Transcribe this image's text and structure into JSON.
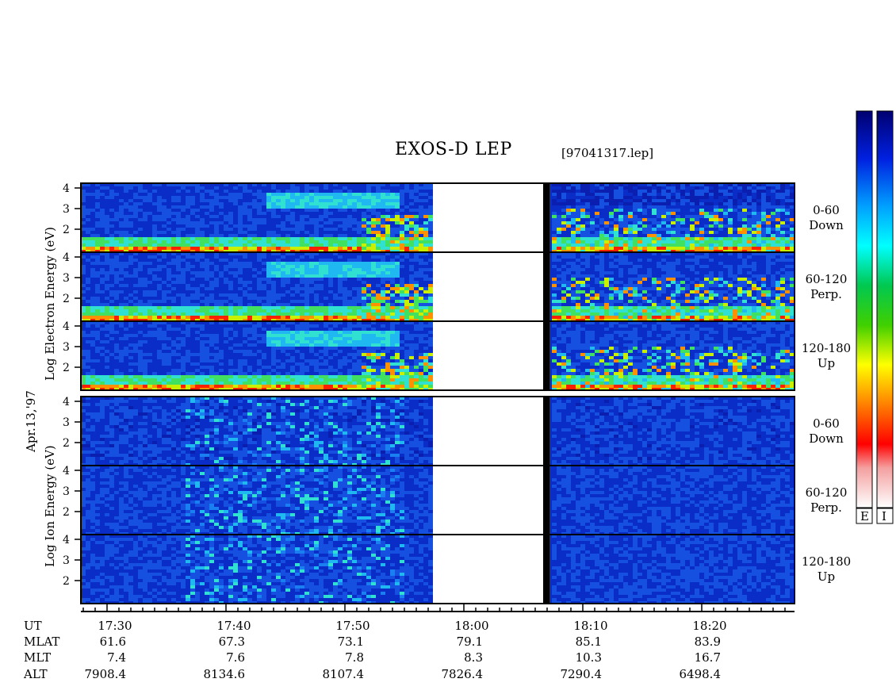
{
  "title": "EXOS-D LEP",
  "file_name": "[97041317.lep]",
  "date_label": "Apr.13,'97",
  "electron_axis_label": "Log Electron Energy (eV)",
  "ion_axis_label": "Log Ion Energy (eV)",
  "colorbar_labels": [
    "E",
    "I"
  ],
  "colors": {
    "spectrogram_background": "#0a2dc8",
    "gap_fill": "#ffffff",
    "frame": "#000000"
  },
  "chart_data": {
    "type": "heatmap",
    "description_units": "time UT vs log10 energy (eV), pitch-angle sectors",
    "time_ticks": [
      "17:30",
      "17:40",
      "17:50",
      "18:00",
      "18:10",
      "18:20"
    ],
    "energy_ticks": [
      "4",
      "3",
      "2"
    ],
    "energy_ticks_bottom_panel": [
      "4",
      "3",
      "2"
    ],
    "ylim_log_ev": [
      0.8,
      4.1
    ],
    "data_gap_ut": [
      "17:57",
      "18:07"
    ],
    "panels": [
      {
        "species": "electron",
        "label1": "0-60",
        "label2": "Down"
      },
      {
        "species": "electron",
        "label1": "60-120",
        "label2": "Perp."
      },
      {
        "species": "electron",
        "label1": "120-180",
        "label2": "Up"
      },
      {
        "species": "ion",
        "label1": "0-60",
        "label2": "Down"
      },
      {
        "species": "ion",
        "label1": "60-120",
        "label2": "Perp."
      },
      {
        "species": "ion",
        "label1": "120-180",
        "label2": "Up"
      }
    ],
    "ephemeris": {
      "row_labels": [
        "UT",
        "MLAT",
        "MLT",
        "ALT"
      ],
      "UT": [
        "17:30",
        "17:40",
        "17:50",
        "18:00",
        "18:10",
        "18:20"
      ],
      "MLAT": [
        "61.6",
        "67.3",
        "73.1",
        "79.1",
        "85.1",
        "83.9"
      ],
      "MLT": [
        "7.4",
        "7.6",
        "7.8",
        "8.3",
        "10.3",
        "16.7"
      ],
      "ALT": [
        "7908.4",
        "8134.6",
        "8107.4",
        "7826.4",
        "7290.4",
        "6498.4"
      ]
    }
  }
}
